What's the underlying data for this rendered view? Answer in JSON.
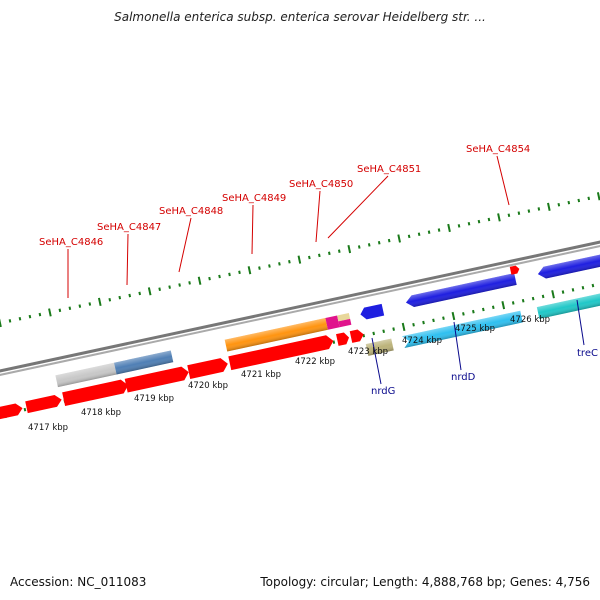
{
  "title": "Salmonella enterica subsp. enterica serovar Heidelberg str. ...",
  "footer": {
    "accession": "Accession: NC_011083",
    "summary": "Topology: circular; Length: 4,888,768 bp; Genes: 4,756"
  },
  "ticks": [
    {
      "label": "4717 kbp"
    },
    {
      "label": "4718 kbp"
    },
    {
      "label": "4719 kbp"
    },
    {
      "label": "4720 kbp"
    },
    {
      "label": "4721 kbp"
    },
    {
      "label": "4722 kbp"
    },
    {
      "label": "4723 kbp"
    },
    {
      "label": "4724 kbp"
    },
    {
      "label": "4725 kbp"
    },
    {
      "label": "4726 kbp"
    }
  ],
  "top_labels": [
    {
      "text": "SeHA_C4846"
    },
    {
      "text": "SeHA_C4847"
    },
    {
      "text": "SeHA_C4848"
    },
    {
      "text": "SeHA_C4849"
    },
    {
      "text": "SeHA_C4850"
    },
    {
      "text": "SeHA_C4851"
    },
    {
      "text": "SeHA_C4854"
    }
  ],
  "bottom_labels": [
    {
      "text": "nrdG"
    },
    {
      "text": "nrdD"
    },
    {
      "text": "treC"
    }
  ],
  "colors": {
    "cds": "#ff0000",
    "backbone": "#888888",
    "tick": "#1a7a1a",
    "label_red": "#d40000",
    "label_blue": "#0a0a8c",
    "gray": "#c8c8c8",
    "steelblue": "#4f7fb5",
    "orange": "#ff9410",
    "magenta": "#e0148c",
    "khaki": "#bcb37a",
    "tan": "#e8d79a",
    "blue": "#1f1fe0",
    "skyblue": "#2fc0f0",
    "cyan": "#20c8c8"
  }
}
